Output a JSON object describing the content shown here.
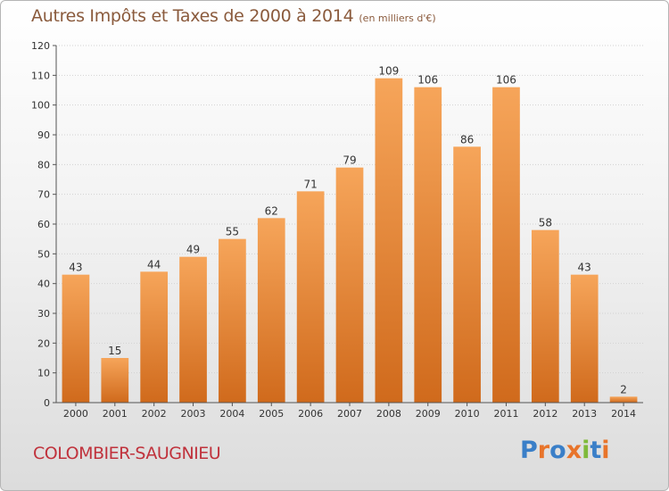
{
  "header": {
    "title": "Autres Impôts et Taxes de 2000 à 2014",
    "subtitle": "(en milliers d'€)"
  },
  "footer": {
    "commune": "COLOMBIER-SAUGNIEU",
    "logo_text": "Proxiti",
    "logo_colors": [
      "#3a7fc8",
      "#e8742a",
      "#3a7fc8",
      "#e8742a",
      "#7fba3a",
      "#3a7fc8",
      "#e8742a"
    ]
  },
  "colors": {
    "bar_top": "#f6a55a",
    "bar_bottom": "#d06a1c",
    "grid": "#d2d2d2",
    "axis": "#555555",
    "text": "#333333"
  },
  "chart_data": {
    "type": "bar",
    "title": "Autres Impôts et Taxes de 2000 à 2014",
    "subtitle": "(en milliers d'€)",
    "xlabel": "",
    "ylabel": "",
    "categories": [
      "2000",
      "2001",
      "2002",
      "2003",
      "2004",
      "2005",
      "2006",
      "2007",
      "2008",
      "2009",
      "2010",
      "2011",
      "2012",
      "2013",
      "2014"
    ],
    "values": [
      43,
      15,
      44,
      49,
      55,
      62,
      71,
      79,
      109,
      106,
      86,
      106,
      58,
      43,
      2
    ],
    "ylim": [
      0,
      120
    ],
    "yticks": [
      0,
      10,
      20,
      30,
      40,
      50,
      60,
      70,
      80,
      90,
      100,
      110,
      120
    ],
    "grid": true,
    "data_labels": true,
    "legend": "none"
  }
}
